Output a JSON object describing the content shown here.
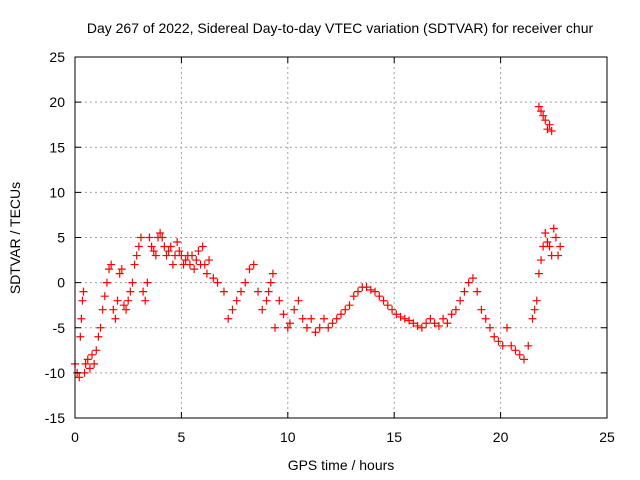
{
  "chart_data": {
    "type": "scatter",
    "title": "Day 267 of 2022, Sidereal Day-to-day VTEC variation (SDTVAR) for receiver chur",
    "xlabel": "GPS time / hours",
    "ylabel": "SDTVAR / TECUs",
    "xlim": [
      0,
      25
    ],
    "ylim": [
      -15,
      25
    ],
    "xticks": [
      "0",
      "5",
      "10",
      "15",
      "20",
      "25"
    ],
    "yticks": [
      "-15",
      "-10",
      "-5",
      "0",
      "5",
      "10",
      "15",
      "20",
      "25"
    ],
    "grid": true,
    "marker": "+",
    "color": "#ff0000",
    "series": [
      {
        "name": "SDTVAR",
        "x": [
          0.0,
          0.1,
          0.2,
          0.25,
          0.3,
          0.35,
          0.4,
          0.45,
          0.5,
          0.6,
          0.7,
          0.8,
          0.9,
          1.0,
          1.1,
          1.2,
          1.3,
          1.4,
          1.5,
          1.6,
          1.7,
          1.8,
          1.9,
          2.0,
          2.1,
          2.2,
          2.3,
          2.4,
          2.5,
          2.6,
          2.7,
          2.8,
          2.9,
          3.0,
          3.1,
          3.2,
          3.3,
          3.4,
          3.5,
          3.6,
          3.7,
          3.8,
          3.9,
          4.0,
          4.1,
          4.2,
          4.3,
          4.4,
          4.5,
          4.6,
          4.7,
          4.8,
          4.9,
          5.0,
          5.1,
          5.2,
          5.3,
          5.4,
          5.5,
          5.6,
          5.7,
          5.8,
          5.9,
          6.0,
          6.1,
          6.2,
          6.3,
          6.5,
          6.7,
          7.0,
          7.2,
          7.4,
          7.6,
          7.8,
          8.0,
          8.2,
          8.4,
          8.6,
          8.8,
          9.0,
          9.1,
          9.2,
          9.3,
          9.4,
          9.6,
          9.8,
          10.0,
          10.1,
          10.3,
          10.5,
          10.7,
          10.9,
          11.1,
          11.3,
          11.5,
          11.7,
          11.9,
          12.1,
          12.3,
          12.5,
          12.7,
          12.9,
          13.1,
          13.3,
          13.5,
          13.7,
          13.9,
          14.1,
          14.3,
          14.5,
          14.7,
          14.9,
          15.1,
          15.3,
          15.5,
          15.7,
          15.9,
          16.1,
          16.3,
          16.5,
          16.7,
          16.9,
          17.1,
          17.3,
          17.5,
          17.7,
          17.9,
          18.1,
          18.3,
          18.5,
          18.7,
          18.9,
          19.1,
          19.3,
          19.5,
          19.7,
          19.9,
          20.1,
          20.3,
          20.5,
          20.7,
          20.9,
          21.1,
          21.3,
          21.5,
          21.6,
          21.7,
          21.8,
          21.9,
          22.0,
          22.1,
          22.2,
          22.3,
          22.4,
          22.5,
          22.6,
          22.7,
          22.8,
          21.8,
          21.9,
          22.0,
          22.1,
          22.2,
          22.3,
          22.4
        ],
        "y": [
          -9.0,
          -10.0,
          -10.5,
          -6.0,
          -4.0,
          -2.0,
          -1.0,
          -10.0,
          -9.0,
          -8.5,
          -9.5,
          -8.0,
          -9.0,
          -7.5,
          -6.0,
          -5.0,
          -3.0,
          -1.5,
          0.0,
          1.5,
          2.0,
          -3.0,
          -4.0,
          -2.0,
          1.0,
          1.5,
          -2.5,
          -3.0,
          -2.0,
          -1.0,
          0.0,
          2.0,
          3.0,
          4.0,
          5.0,
          -1.0,
          -2.0,
          0.0,
          5.0,
          4.0,
          3.5,
          3.0,
          5.0,
          5.5,
          5.0,
          4.0,
          3.0,
          3.5,
          4.0,
          2.0,
          3.0,
          4.5,
          3.5,
          3.0,
          2.0,
          2.5,
          3.0,
          2.0,
          3.0,
          1.5,
          2.5,
          3.5,
          2.0,
          4.0,
          2.0,
          1.0,
          2.5,
          0.5,
          0.0,
          -1.0,
          -4.0,
          -3.0,
          -2.0,
          -1.0,
          0.0,
          1.5,
          2.0,
          -1.0,
          -3.0,
          -2.0,
          -1.0,
          0.0,
          1.0,
          -5.0,
          -2.0,
          -3.5,
          -5.0,
          -4.5,
          -3.0,
          -2.0,
          -4.0,
          -5.0,
          -4.0,
          -5.5,
          -5.0,
          -4.0,
          -5.0,
          -4.5,
          -4.0,
          -3.5,
          -3.0,
          -2.5,
          -1.5,
          -1.0,
          -0.5,
          -0.5,
          -0.8,
          -1.0,
          -1.5,
          -2.0,
          -2.5,
          -3.0,
          -3.5,
          -3.8,
          -4.0,
          -4.2,
          -4.5,
          -4.8,
          -5.0,
          -4.5,
          -4.0,
          -4.5,
          -4.8,
          -4.0,
          -4.5,
          -3.5,
          -3.0,
          -2.0,
          -1.0,
          0.0,
          0.5,
          -1.0,
          -3.0,
          -4.0,
          -5.0,
          -6.0,
          -6.5,
          -7.0,
          -5.0,
          -7.0,
          -7.5,
          -8.0,
          -8.5,
          -7.0,
          -4.0,
          -3.0,
          -2.0,
          1.0,
          2.5,
          4.0,
          5.5,
          4.5,
          4.0,
          3.0,
          6.0,
          5.0,
          3.0,
          4.0,
          19.5,
          19.0,
          18.5,
          18.0,
          17.0,
          17.5,
          16.8
        ]
      }
    ]
  }
}
